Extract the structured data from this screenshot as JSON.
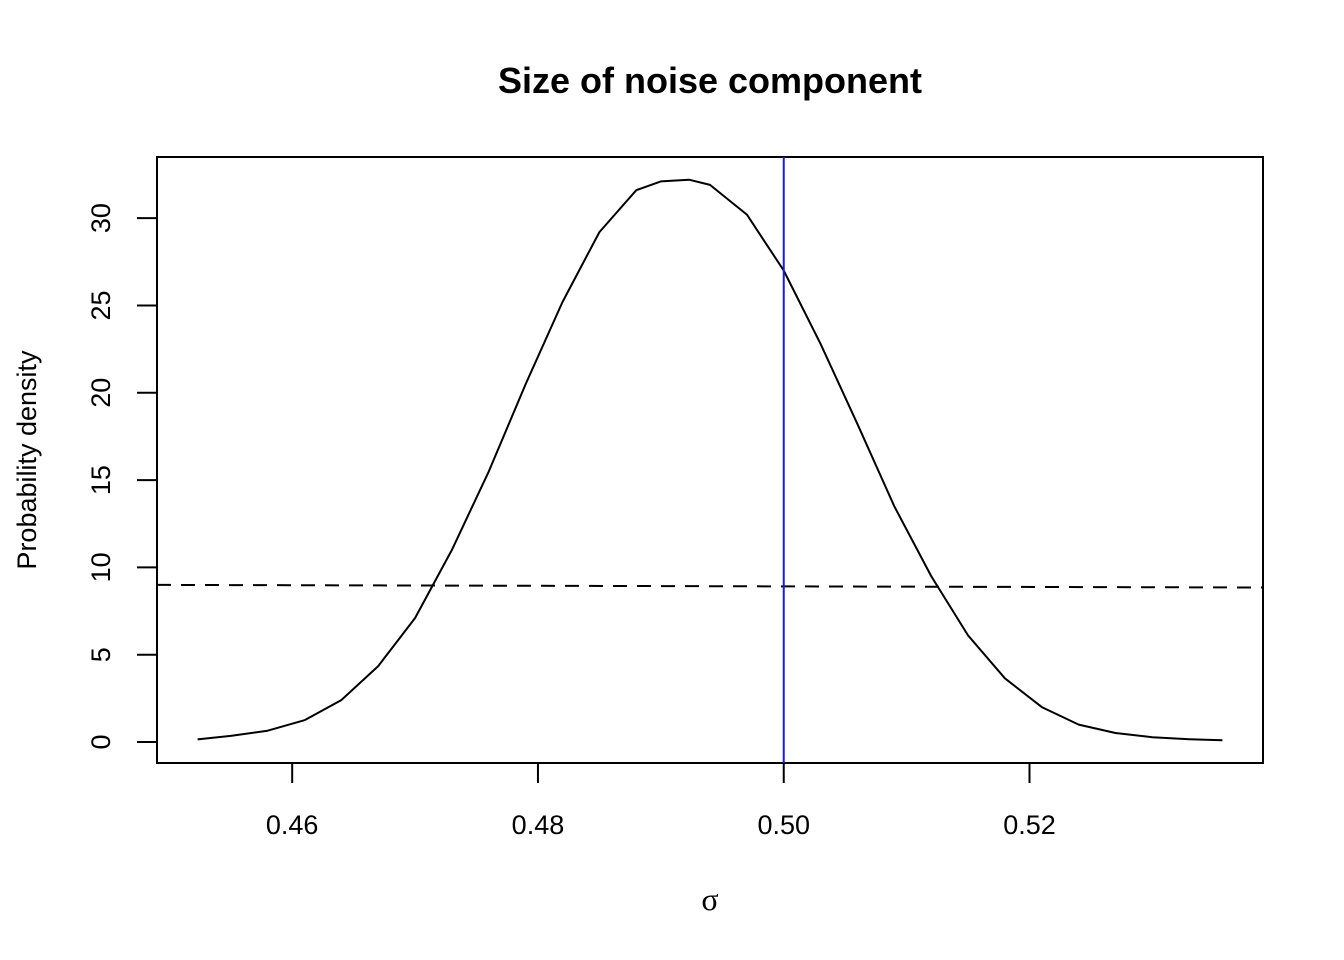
{
  "chart_data": {
    "type": "line",
    "title": "Size of noise component",
    "xlabel": "σ",
    "ylabel": "Probability density",
    "xlim": [
      0.449,
      0.539
    ],
    "ylim": [
      -1.2,
      33.5
    ],
    "x_ticks": [
      0.46,
      0.48,
      0.5,
      0.52
    ],
    "x_tick_labels": [
      "0.46",
      "0.48",
      "0.50",
      "0.52"
    ],
    "y_ticks": [
      0,
      5,
      10,
      15,
      20,
      25,
      30
    ],
    "y_tick_labels": [
      "0",
      "5",
      "10",
      "15",
      "20",
      "25",
      "30"
    ],
    "grid": false,
    "legend": "none",
    "series": [
      {
        "style": "solid",
        "color": "#000000",
        "x": [
          0.4523,
          0.455,
          0.458,
          0.461,
          0.464,
          0.467,
          0.47,
          0.473,
          0.476,
          0.479,
          0.482,
          0.485,
          0.488,
          0.49,
          0.4923,
          0.494,
          0.497,
          0.5,
          0.503,
          0.506,
          0.509,
          0.512,
          0.515,
          0.518,
          0.521,
          0.524,
          0.527,
          0.53,
          0.533,
          0.5357
        ],
        "y": [
          0.15,
          0.35,
          0.65,
          1.25,
          2.4,
          4.35,
          7.1,
          11.0,
          15.5,
          20.5,
          25.2,
          29.2,
          31.6,
          32.1,
          32.2,
          31.9,
          30.2,
          27.0,
          22.8,
          18.2,
          13.5,
          9.5,
          6.1,
          3.65,
          2.0,
          1.0,
          0.52,
          0.28,
          0.16,
          0.1
        ]
      },
      {
        "style": "dashed",
        "color": "#000000",
        "x": [
          0.449,
          0.539
        ],
        "y": [
          9.0,
          8.85
        ]
      }
    ],
    "vline": {
      "x": 0.5,
      "color": "#1a1adb"
    }
  }
}
